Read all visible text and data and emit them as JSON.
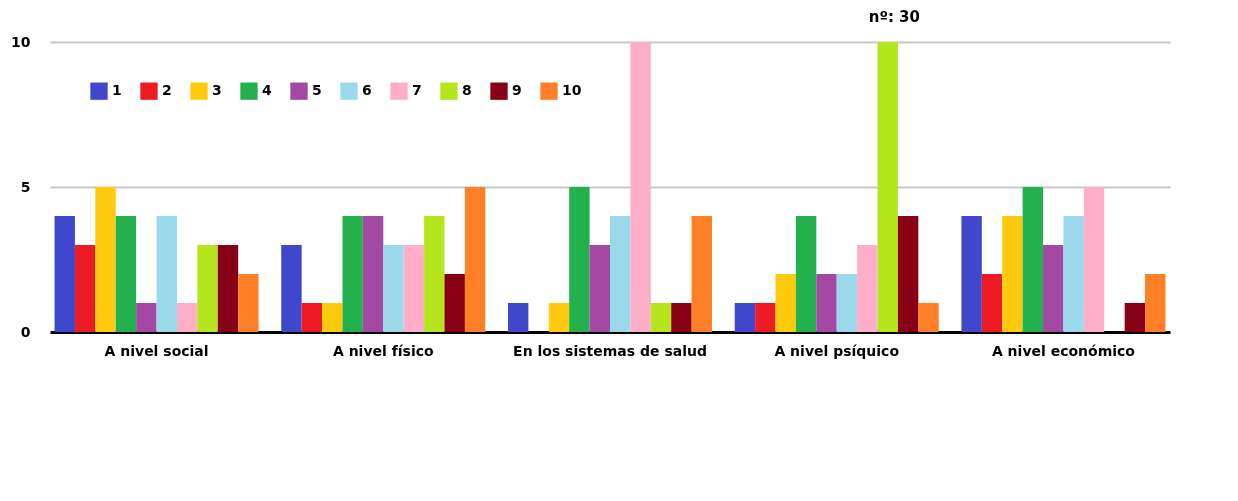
{
  "chart_data": {
    "type": "bar",
    "categories": [
      "A nivel social",
      "A nivel físico",
      "En los sistemas de salud",
      "A nivel psíquico",
      "A nivel económico"
    ],
    "series": [
      {
        "name": "1",
        "color": "#3f48cc",
        "values": [
          4,
          3,
          1,
          1,
          4
        ]
      },
      {
        "name": "2",
        "color": "#ed1c24",
        "values": [
          3,
          1,
          0,
          1,
          2
        ]
      },
      {
        "name": "3",
        "color": "#ffc90e",
        "values": [
          5,
          1,
          1,
          2,
          4
        ]
      },
      {
        "name": "4",
        "color": "#22b14c",
        "values": [
          4,
          4,
          5,
          4,
          5
        ]
      },
      {
        "name": "5",
        "color": "#a349a4",
        "values": [
          1,
          4,
          3,
          2,
          3
        ]
      },
      {
        "name": "6",
        "color": "#99d9ea",
        "values": [
          4,
          3,
          4,
          2,
          4
        ]
      },
      {
        "name": "7",
        "color": "#ffaec9",
        "values": [
          1,
          3,
          10,
          3,
          5
        ]
      },
      {
        "name": "8",
        "color": "#b5e61d",
        "values": [
          3,
          4,
          1,
          10,
          0
        ]
      },
      {
        "name": "9",
        "color": "#880015",
        "values": [
          3,
          2,
          1,
          4,
          1
        ]
      },
      {
        "name": "10",
        "color": "#ff7f27",
        "values": [
          2,
          5,
          4,
          1,
          2
        ]
      }
    ],
    "ylim": [
      0,
      10
    ],
    "yticks": [
      0,
      5,
      10
    ],
    "grid": "y",
    "legend": "top left",
    "annotations": [
      "nº: 30"
    ]
  }
}
